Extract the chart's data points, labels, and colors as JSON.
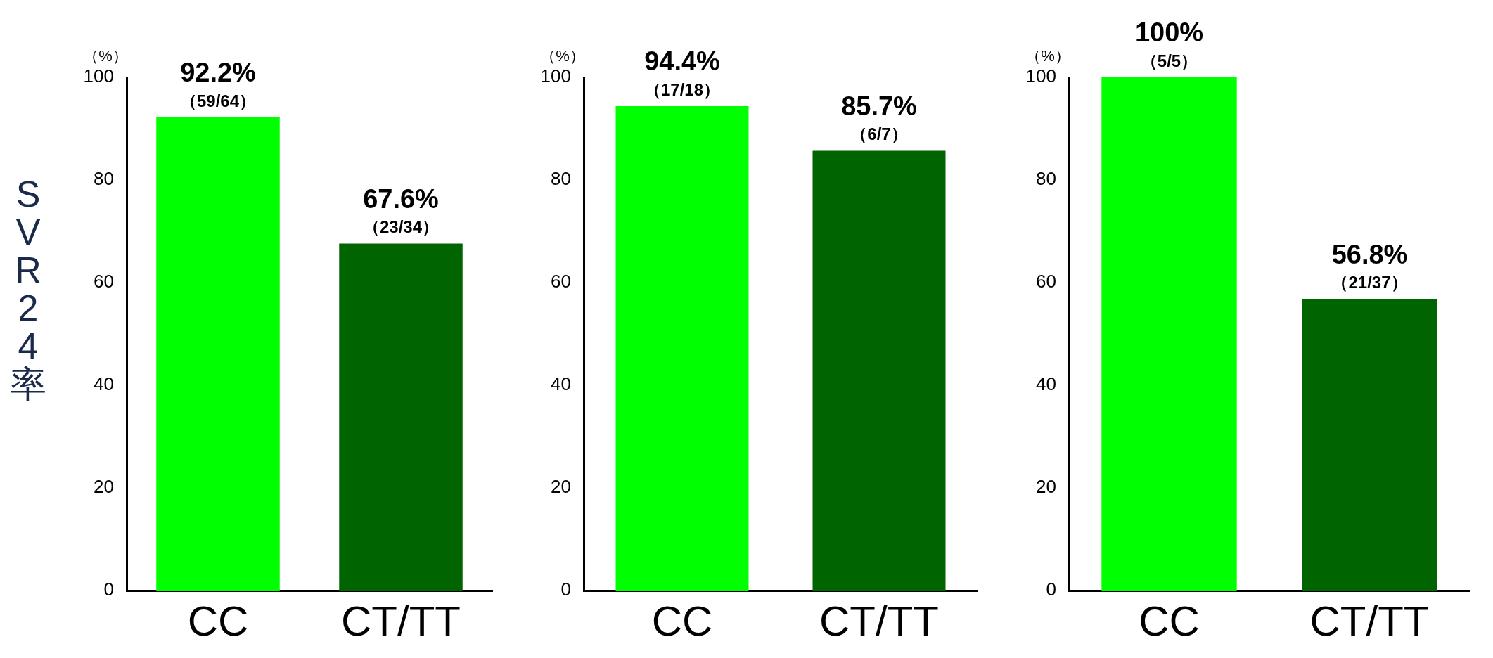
{
  "chart_data": [
    {
      "type": "bar",
      "ylabel": "SVR24率",
      "categories": [
        "CC",
        "CT/TT"
      ],
      "values": [
        92.2,
        67.6
      ],
      "colors": [
        "#00ff00",
        "#006400"
      ],
      "value_labels": [
        "92.2%",
        "67.6%"
      ],
      "ylim": [
        0,
        100
      ],
      "yticks": [
        0,
        20,
        40,
        60,
        80,
        100
      ],
      "annotations": [
        "（%）",
        {
          "text": "（59/64）",
          "x": "CC",
          "y": 92.2
        },
        {
          "text": "（23/34）",
          "x": "CT/TT",
          "y": 67.6
        }
      ]
    },
    {
      "type": "bar",
      "categories": [
        "CC",
        "CT/TT"
      ],
      "values": [
        94.4,
        85.7
      ],
      "colors": [
        "#00ff00",
        "#006400"
      ],
      "value_labels": [
        "94.4%",
        "85.7%"
      ],
      "ylim": [
        0,
        100
      ],
      "yticks": [
        0,
        20,
        40,
        60,
        80,
        100
      ],
      "annotations": [
        "（%）",
        {
          "text": "（17/18）",
          "x": "CC",
          "y": 94.4
        },
        {
          "text": "（6/7）",
          "x": "CT/TT",
          "y": 85.7
        }
      ]
    },
    {
      "type": "bar",
      "categories": [
        "CC",
        "CT/TT"
      ],
      "values": [
        100,
        56.8
      ],
      "colors": [
        "#00ff00",
        "#006400"
      ],
      "value_labels": [
        "100%",
        "56.8%"
      ],
      "ylim": [
        0,
        100
      ],
      "yticks": [
        0,
        20,
        40,
        60,
        80,
        100
      ],
      "annotations": [
        "（%）",
        {
          "text": "（5/5）",
          "x": "CC",
          "y": 100
        },
        {
          "text": "（21/37）",
          "x": "CT/TT",
          "y": 56.8
        }
      ]
    }
  ]
}
